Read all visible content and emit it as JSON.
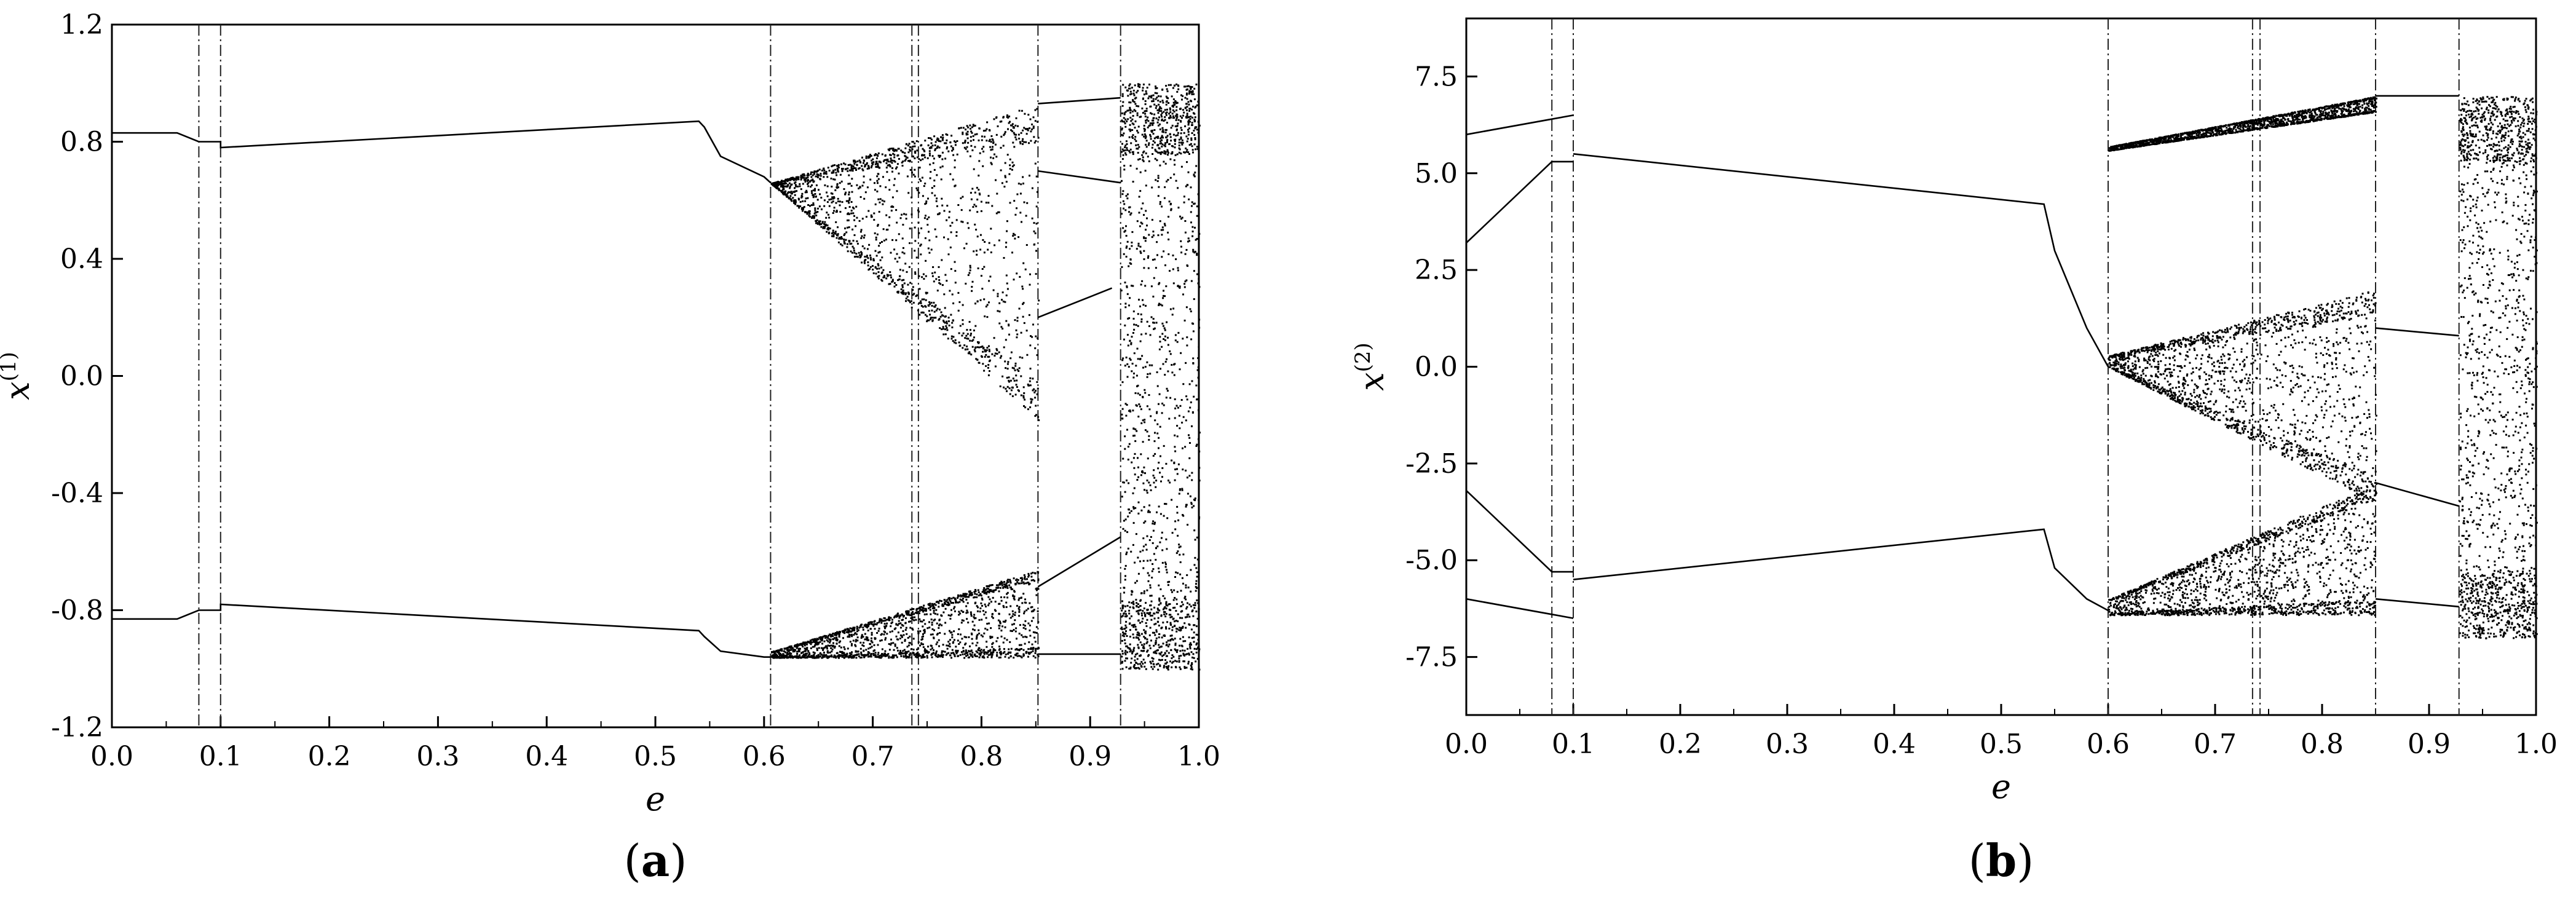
{
  "chart_data": [
    {
      "type": "scatter",
      "panel_label": "a",
      "xlabel": "e",
      "ylabel": "x",
      "ylabel_superscript": "(1)",
      "xlim": [
        0.0,
        1.0
      ],
      "ylim": [
        -1.2,
        1.2
      ],
      "x_ticks": [
        "0.0",
        "0.1",
        "0.2",
        "0.3",
        "0.4",
        "0.5",
        "0.6",
        "0.7",
        "0.8",
        "0.9",
        "1.0"
      ],
      "y_ticks": [
        "-1.2",
        "-0.8",
        "-0.4",
        "0.0",
        "0.4",
        "0.8",
        "1.2"
      ],
      "grid": false,
      "legend": "none",
      "regime_boundaries": [
        0.08,
        0.1,
        0.606,
        0.736,
        0.742,
        0.852,
        0.928
      ],
      "line_segments": [
        {
          "name": "upper-branch",
          "x": [
            0.0,
            0.06,
            0.08,
            0.1,
            0.1,
            0.54,
            0.545,
            0.56,
            0.6,
            0.606
          ],
          "y": [
            0.83,
            0.83,
            0.8,
            0.8,
            0.78,
            0.87,
            0.85,
            0.75,
            0.68,
            0.66
          ]
        },
        {
          "name": "lower-branch",
          "x": [
            0.0,
            0.06,
            0.08,
            0.1,
            0.1,
            0.54,
            0.545,
            0.56,
            0.6,
            0.606
          ],
          "y": [
            -0.83,
            -0.83,
            -0.8,
            -0.8,
            -0.78,
            -0.87,
            -0.89,
            -0.94,
            -0.96,
            -0.96
          ]
        },
        {
          "name": "upper-after-chaos",
          "x": [
            0.852,
            0.928
          ],
          "y": [
            0.93,
            0.95
          ]
        },
        {
          "name": "mid-after-chaos",
          "x": [
            0.852,
            0.928
          ],
          "y": [
            0.7,
            0.66
          ]
        },
        {
          "name": "low-after-chaos",
          "x": [
            0.852,
            0.92
          ],
          "y": [
            0.2,
            0.3
          ]
        },
        {
          "name": "bottom-after-chaos",
          "x": [
            0.852,
            0.928
          ],
          "y": [
            -0.95,
            -0.95
          ]
        },
        {
          "name": "rising-after-chaos",
          "x": [
            0.852,
            0.928
          ],
          "y": [
            -0.72,
            -0.55
          ]
        }
      ],
      "chaos_bands": [
        {
          "x0": 0.606,
          "x1": 0.852,
          "y_top_start": 0.66,
          "y_top_end": 0.93,
          "y_bot_start": 0.66,
          "y_bot_end": -0.15
        },
        {
          "x0": 0.606,
          "x1": 0.852,
          "y_top_start": -0.94,
          "y_top_end": -0.66,
          "y_bot_start": -0.96,
          "y_bot_end": -0.96
        },
        {
          "x0": 0.928,
          "x1": 1.0,
          "y_top_start": 1.0,
          "y_top_end": 1.0,
          "y_bot_start": -1.0,
          "y_bot_end": -1.0
        }
      ]
    },
    {
      "type": "scatter",
      "panel_label": "b",
      "xlabel": "e",
      "ylabel": "x",
      "ylabel_superscript": "(2)",
      "xlim": [
        0.0,
        1.0
      ],
      "ylim": [
        -9.0,
        9.0
      ],
      "x_ticks": [
        "0.0",
        "0.1",
        "0.2",
        "0.3",
        "0.4",
        "0.5",
        "0.6",
        "0.7",
        "0.8",
        "0.9",
        "1.0"
      ],
      "y_ticks": [
        "-7.5",
        "-5.0",
        "-2.5",
        "0.0",
        "2.5",
        "5.0",
        "7.5"
      ],
      "y_tick_values": [
        -7.5,
        -5.0,
        -2.5,
        0.0,
        2.5,
        5.0,
        7.5
      ],
      "grid": false,
      "legend": "none",
      "regime_boundaries": [
        0.08,
        0.1,
        0.6,
        0.735,
        0.742,
        0.85,
        0.928
      ],
      "line_segments": [
        {
          "name": "upper-branch",
          "x": [
            0.1,
            0.54,
            0.55,
            0.58,
            0.6
          ],
          "y": [
            5.5,
            4.2,
            3.0,
            1.0,
            0.0
          ]
        },
        {
          "name": "lower-branch",
          "x": [
            0.1,
            0.54,
            0.55,
            0.58,
            0.6
          ],
          "y": [
            -5.5,
            -4.2,
            -5.2,
            -6.0,
            -6.3
          ]
        },
        {
          "name": "early-upper-1",
          "x": [
            0.0,
            0.08,
            0.1
          ],
          "y": [
            6.0,
            6.4,
            6.5
          ]
        },
        {
          "name": "early-upper-2",
          "x": [
            0.0,
            0.08,
            0.1
          ],
          "y": [
            3.2,
            5.3,
            5.3
          ]
        },
        {
          "name": "early-lower-1",
          "x": [
            0.0,
            0.08,
            0.1
          ],
          "y": [
            -3.2,
            -5.3,
            -5.3
          ]
        },
        {
          "name": "early-lower-2",
          "x": [
            0.0,
            0.08,
            0.1
          ],
          "y": [
            -6.0,
            -6.4,
            -6.5
          ]
        },
        {
          "name": "post-upper",
          "x": [
            0.85,
            0.928
          ],
          "y": [
            7.0,
            7.0
          ]
        },
        {
          "name": "post-mid-upper",
          "x": [
            0.85,
            0.928
          ],
          "y": [
            1.0,
            0.8
          ]
        },
        {
          "name": "post-mid-lower",
          "x": [
            0.85,
            0.928
          ],
          "y": [
            -3.0,
            -3.6
          ]
        },
        {
          "name": "post-lower",
          "x": [
            0.85,
            0.928
          ],
          "y": [
            -6.0,
            -6.2
          ]
        }
      ],
      "chaos_bands": [
        {
          "x0": 0.6,
          "x1": 0.85,
          "y_top_start": 5.7,
          "y_top_end": 7.0,
          "y_bot_start": 5.6,
          "y_bot_end": 6.6
        },
        {
          "x0": 0.6,
          "x1": 0.85,
          "y_top_start": 0.3,
          "y_top_end": 2.0,
          "y_bot_start": 0.0,
          "y_bot_end": -3.5
        },
        {
          "x0": 0.6,
          "x1": 0.85,
          "y_top_start": -6.0,
          "y_top_end": -3.0,
          "y_bot_start": -6.4,
          "y_bot_end": -6.4
        },
        {
          "x0": 0.928,
          "x1": 1.0,
          "y_top_start": 7.0,
          "y_top_end": 7.0,
          "y_bot_start": -7.0,
          "y_bot_end": -7.0
        }
      ]
    }
  ]
}
